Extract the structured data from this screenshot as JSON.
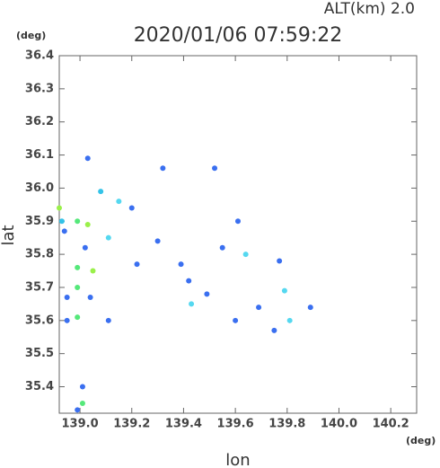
{
  "chart_data": {
    "type": "scatter",
    "title": "2020/01/06 07:59:22",
    "subtitle": "ALT(km) 2.0",
    "y_unit": "(deg)",
    "x_unit": "(deg)",
    "x_label": "lon",
    "y_label": "lat",
    "xlim": [
      138.92,
      140.3
    ],
    "ylim": [
      35.32,
      36.4
    ],
    "xticks": [
      {
        "value": 139,
        "label": "139.0"
      },
      139.2,
      139.4,
      139.6,
      139.8,
      {
        "value": 140,
        "label": "140.0"
      },
      140.2
    ],
    "yticks": [
      35.4,
      35.5,
      35.6,
      35.7,
      35.8,
      35.9,
      {
        "value": 36,
        "label": "36.0"
      },
      36.1,
      36.2,
      36.3,
      36.4
    ],
    "x": [
      139.03,
      139.08,
      138.92,
      138.93,
      138.99,
      139.03,
      138.94,
      139.02,
      138.99,
      139.05,
      138.99,
      138.95,
      139.04,
      138.95,
      138.99,
      139.11,
      139.01,
      139.01,
      138.99,
      139.11,
      139.15,
      139.2,
      139.32,
      139.3,
      139.22,
      139.42,
      139.43,
      139.52,
      139.61,
      139.64,
      139.77,
      139.79,
      139.89,
      139.81,
      139.75,
      139.69,
      139.49,
      139.55,
      139.6,
      139.39
    ],
    "y": [
      36.09,
      35.99,
      35.94,
      35.9,
      35.9,
      35.89,
      35.87,
      35.82,
      35.76,
      35.75,
      35.7,
      35.67,
      35.67,
      35.6,
      35.61,
      35.6,
      35.4,
      35.35,
      35.33,
      35.85,
      35.96,
      35.94,
      36.06,
      35.84,
      35.77,
      35.72,
      35.65,
      36.06,
      35.9,
      35.8,
      35.78,
      35.69,
      35.64,
      35.6,
      35.57,
      35.64,
      35.68,
      35.82,
      35.6,
      35.77
    ],
    "colors": [
      "#3a6ff0",
      "#33c3e8",
      "#9af04a",
      "#33c3e8",
      "#55e87a",
      "#9af04a",
      "#3a6ff0",
      "#3a6ff0",
      "#55e87a",
      "#9af04a",
      "#55e87a",
      "#3a6ff0",
      "#3a6ff0",
      "#3a6ff0",
      "#55e87a",
      "#3a6ff0",
      "#3a6ff0",
      "#55e87a",
      "#3a6ff0",
      "#55d8f0",
      "#55d8f0",
      "#3a6ff0",
      "#3a6ff0",
      "#3a6ff0",
      "#3a6ff0",
      "#3a6ff0",
      "#55d8f0",
      "#3a6ff0",
      "#3a6ff0",
      "#55d8f0",
      "#3a6ff0",
      "#55d8f0",
      "#3a6ff0",
      "#55d8f0",
      "#3a6ff0",
      "#3a6ff0",
      "#3a6ff0",
      "#3a6ff0",
      "#3a6ff0",
      "#3a6ff0"
    ]
  }
}
